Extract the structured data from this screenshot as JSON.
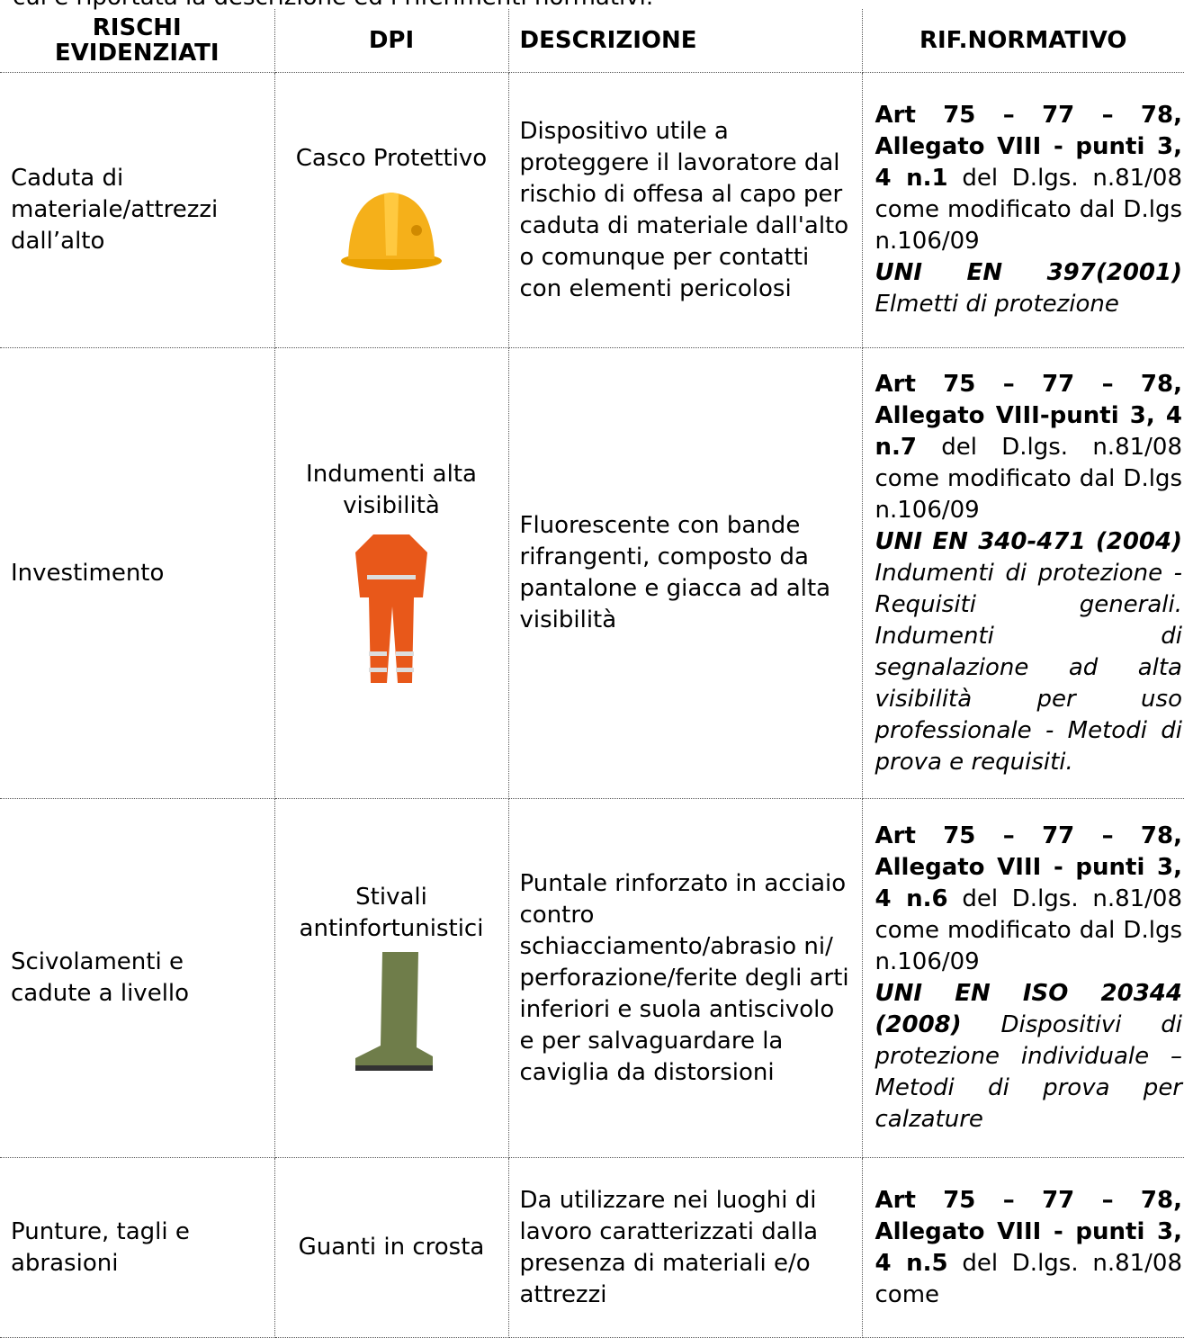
{
  "intro": "cui è riportata la descrizione ed i riferimenti normativi.",
  "table": {
    "headers": [
      "RISCHI EVIDENZIATI",
      "DPI",
      "DESCRIZIONE",
      "RIF.NORMATIVO"
    ],
    "rows": [
      {
        "risk": "Caduta di materiale/attrezzi dall’alto",
        "dpi": "Casco Protettivo",
        "description": "Dispositivo utile a proteggere il lavoratore dal rischio di offesa al capo per caduta di materiale dall'alto o comunque per contatti con elementi pericolosi",
        "law_bold": "Art 75 – 77 – 78, Allegato VIII - punti 3, 4 n.1",
        "law": "del D.lgs. n.81/08 come modificato dal D.lgs n.106/09",
        "norm": "UNI EN 397(2001)",
        "norm_desc": "Elmetti di protezione"
      },
      {
        "risk": "Investimento",
        "dpi": "Indumenti alta visibilità",
        "description": "Fluorescente con bande rifrangenti, composto da pantalone e giacca ad alta visibilità",
        "law_bold": "Art 75 – 77 – 78, Allegato VIII-punti 3, 4 n.7",
        "law": "del D.lgs. n.81/08 come modificato dal D.lgs n.106/09",
        "norm": "UNI EN 340-471 (2004)",
        "norm_desc": "Indumenti di protezione - Requisiti generali. Indumenti di segnalazione ad alta visibilità per uso professionale - Metodi di prova e requisiti."
      },
      {
        "risk": "Scivolamenti e cadute a livello",
        "dpi": "Stivali antinfortunistici",
        "description": "Puntale rinforzato in acciaio contro schiacciamento/abrasio ni/ perforazione/ferite degli arti inferiori e suola antiscivolo e per salvaguardare la caviglia da distorsioni",
        "law_bold": "Art 75 – 77 – 78, Allegato VIII - punti 3, 4 n.6",
        "law": "del D.lgs. n.81/08 come modificato dal D.lgs n.106/09",
        "norm": "UNI EN ISO 20344 (2008)",
        "norm_desc": "Dispositivi di protezione individuale – Metodi di prova per calzature"
      },
      {
        "risk": "Punture, tagli e abrasioni",
        "dpi": "Guanti in crosta",
        "description": "Da utilizzare nei luoghi di lavoro caratterizzati dalla presenza di materiali e/o attrezzi",
        "law_bold": "Art 75 – 77 – 78, Allegato VIII - punti 3, 4 n.5",
        "law": "del D.lgs. n.81/08 come"
      }
    ]
  }
}
